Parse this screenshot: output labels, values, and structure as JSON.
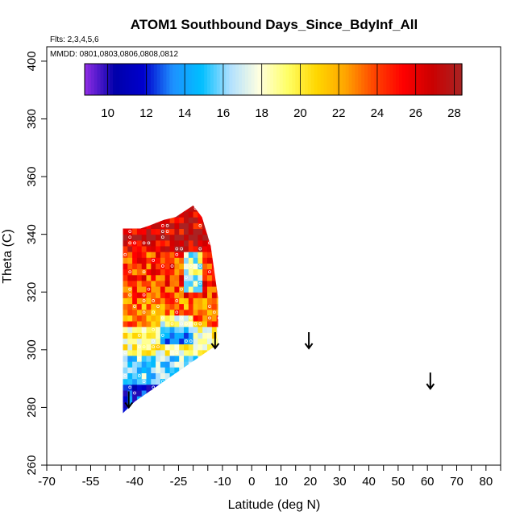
{
  "chart_data": {
    "type": "heatmap",
    "title": "ATOM1 Southbound Days_Since_BdyInf_All",
    "flights_note": "Flts: 2,3,4,5,6",
    "dates_note": "MMDD: 0801,0803,0806,0808,0812",
    "xlabel": "Latitude (deg N)",
    "ylabel": "Theta (C)",
    "xlim": [
      -70,
      85
    ],
    "ylim": [
      260,
      405
    ],
    "x_ticks": [
      -70,
      -55,
      -40,
      -25,
      -10,
      0,
      10,
      20,
      30,
      40,
      50,
      60,
      70,
      80
    ],
    "x_minor_ticks": [
      -65,
      -60,
      -50,
      -45,
      -35,
      -30,
      -20,
      -15,
      -5,
      5,
      15,
      25,
      35,
      45,
      55,
      65,
      75,
      85
    ],
    "y_ticks": [
      260,
      280,
      300,
      320,
      340,
      360,
      380,
      400
    ],
    "colorbar": {
      "min": 8.8,
      "max": 28.4,
      "ticks": [
        10,
        12,
        14,
        16,
        18,
        20,
        22,
        24,
        26,
        28
      ],
      "colors": [
        "#8a2be2",
        "#0000aa",
        "#0000cd",
        "#1e90ff",
        "#00bfff",
        "#b0e0ff",
        "#ffffe0",
        "#ffff66",
        "#ffd700",
        "#ffa500",
        "#ff4500",
        "#ff0000",
        "#cc0000",
        "#aa2222"
      ]
    },
    "arrows": [
      {
        "lat": -42,
        "theta": 280
      },
      {
        "lat": -12.5,
        "theta": 300.5
      },
      {
        "lat": 19.5,
        "theta": 300.5
      },
      {
        "lat": 61,
        "theta": 286.5
      }
    ],
    "data_region": {
      "lat_range": [
        -44,
        -11.5
      ],
      "theta_range": [
        278,
        350
      ],
      "lower_edge": [
        [
          -44,
          278
        ],
        [
          -40,
          282
        ],
        [
          -11.5,
          302
        ]
      ],
      "top_edge": [
        [
          -44,
          342
        ],
        [
          -38,
          342
        ],
        [
          -35,
          343
        ],
        [
          -30,
          345
        ],
        [
          -26,
          346
        ],
        [
          -20,
          350
        ],
        [
          -17,
          346
        ],
        [
          -14,
          336
        ],
        [
          -11.5,
          318
        ]
      ],
      "zones": [
        {
          "theta": [
            334,
            350
          ],
          "value": 26.5
        },
        {
          "theta": [
            318,
            334
          ],
          "value": 24.5
        },
        {
          "theta": [
            308,
            318
          ],
          "value": 23
        },
        {
          "theta": [
            298,
            308
          ],
          "value": 19
        },
        {
          "theta": [
            288,
            298
          ],
          "value": 16
        },
        {
          "theta": [
            278,
            288
          ],
          "value": 12
        }
      ]
    }
  }
}
